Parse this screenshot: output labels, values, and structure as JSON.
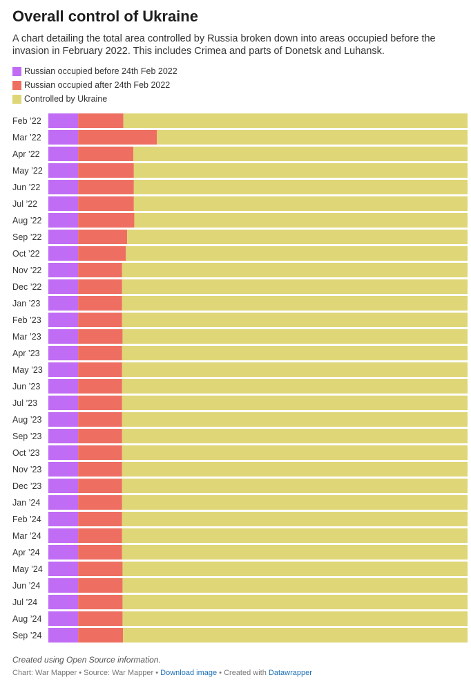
{
  "header": {
    "title": "Overall control of Ukraine",
    "subtitle": "A chart detailing the total area controlled by Russia broken down into areas occupied before the invasion in February 2022. This includes Crimea and parts of Donetsk and Luhansk."
  },
  "legend": [
    {
      "label": "Russian occupied before 24th Feb 2022",
      "color": "#c06cf5"
    },
    {
      "label": "Russian occupied after 24th Feb 2022",
      "color": "#ee6f61"
    },
    {
      "label": "Controlled by Ukraine",
      "color": "#dfd677"
    }
  ],
  "chart_data": {
    "type": "bar",
    "orientation": "horizontal",
    "stacked": "100%",
    "xlim": [
      0,
      100
    ],
    "categories": [
      "Feb ’22",
      "Mar ’22",
      "Apr ’22",
      "May ’22",
      "Jun ’22",
      "Jul ’22",
      "Aug ’22",
      "Sep ’22",
      "Oct ’22",
      "Nov ’22",
      "Dec ’22",
      "Jan ’23",
      "Feb ’23",
      "Mar ’23",
      "Apr ’23",
      "May ’23",
      "Jun ’23",
      "Jul ’23",
      "Aug ’23",
      "Sep ’23",
      "Oct ’23",
      "Nov ’23",
      "Dec ’23",
      "Jan ’24",
      "Feb ’24",
      "Mar ’24",
      "Apr ’24",
      "May ’24",
      "Jun ’24",
      "Jul ’24",
      "Aug ’24",
      "Sep ’24"
    ],
    "series": [
      {
        "name": "Russian occupied before 24th Feb 2022",
        "color": "#c06cf5",
        "values": [
          7.1,
          7.1,
          7.1,
          7.1,
          7.1,
          7.1,
          7.1,
          7.1,
          7.1,
          7.1,
          7.1,
          7.1,
          7.1,
          7.1,
          7.1,
          7.1,
          7.1,
          7.1,
          7.1,
          7.1,
          7.1,
          7.1,
          7.1,
          7.1,
          7.1,
          7.1,
          7.1,
          7.1,
          7.1,
          7.1,
          7.1,
          7.1
        ]
      },
      {
        "name": "Russian occupied after 24th Feb 2022",
        "color": "#ee6f61",
        "values": [
          10.8,
          18.8,
          13.2,
          13.3,
          13.3,
          13.3,
          13.4,
          11.7,
          11.4,
          10.5,
          10.5,
          10.5,
          10.5,
          10.6,
          10.5,
          10.5,
          10.5,
          10.5,
          10.5,
          10.5,
          10.5,
          10.5,
          10.5,
          10.5,
          10.5,
          10.5,
          10.5,
          10.6,
          10.6,
          10.6,
          10.6,
          10.7
        ]
      },
      {
        "name": "Controlled by Ukraine",
        "color": "#dfd677",
        "values": [
          82.1,
          74.1,
          79.7,
          79.6,
          79.6,
          79.6,
          79.5,
          81.2,
          81.5,
          82.4,
          82.4,
          82.4,
          82.4,
          82.3,
          82.4,
          82.4,
          82.4,
          82.4,
          82.4,
          82.4,
          82.4,
          82.4,
          82.4,
          82.4,
          82.4,
          82.4,
          82.4,
          82.3,
          82.3,
          82.3,
          82.3,
          82.2
        ]
      }
    ]
  },
  "notes": {
    "note": "Created using Open Source information.",
    "chart_by": "Chart: War Mapper",
    "source": "Source: War Mapper",
    "download": "Download image",
    "created_with": "Created with",
    "tool": "Datawrapper",
    "separator": "•"
  }
}
